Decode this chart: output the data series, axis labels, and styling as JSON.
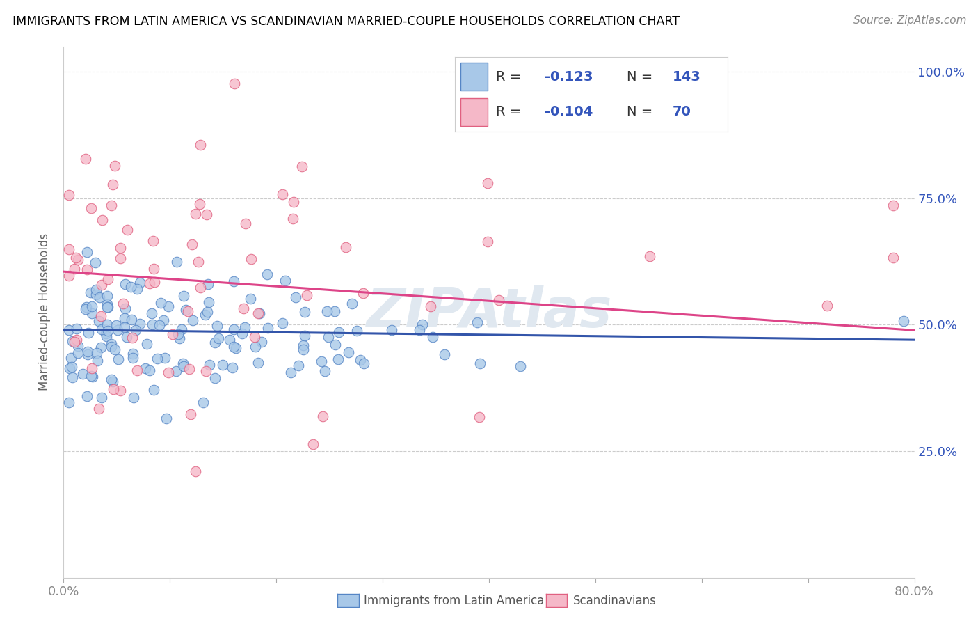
{
  "title": "IMMIGRANTS FROM LATIN AMERICA VS SCANDINAVIAN MARRIED-COUPLE HOUSEHOLDS CORRELATION CHART",
  "source_text": "Source: ZipAtlas.com",
  "ylabel": "Married-couple Households",
  "xmin": 0.0,
  "xmax": 0.8,
  "ymin": 0.0,
  "ymax": 1.05,
  "ytick_positions": [
    0.0,
    0.25,
    0.5,
    0.75,
    1.0
  ],
  "ytick_labels": [
    "",
    "25.0%",
    "50.0%",
    "75.0%",
    "100.0%"
  ],
  "xtick_positions": [
    0.0,
    0.1,
    0.2,
    0.3,
    0.4,
    0.5,
    0.6,
    0.7,
    0.8
  ],
  "xtick_labels": [
    "0.0%",
    "",
    "",
    "",
    "",
    "",
    "",
    "",
    "80.0%"
  ],
  "color_blue": "#a8c8e8",
  "color_pink": "#f5b8c8",
  "edge_blue": "#5585c5",
  "edge_pink": "#e06080",
  "line_blue": "#3355aa",
  "line_pink": "#dd4488",
  "legend_text_color": "#3355bb",
  "axis_text_color": "#3355bb",
  "watermark_text": "ZIPAtlas",
  "watermark_color": "#e0e8f0",
  "legend_r1": "-0.123",
  "legend_n1": "143",
  "legend_r2": "-0.104",
  "legend_n2": "70",
  "blue_intercept": 0.49,
  "blue_slope": -0.025,
  "pink_intercept": 0.605,
  "pink_slope": -0.145,
  "title_fontsize": 12.5,
  "tick_fontsize": 13,
  "legend_fontsize": 14,
  "source_fontsize": 11
}
